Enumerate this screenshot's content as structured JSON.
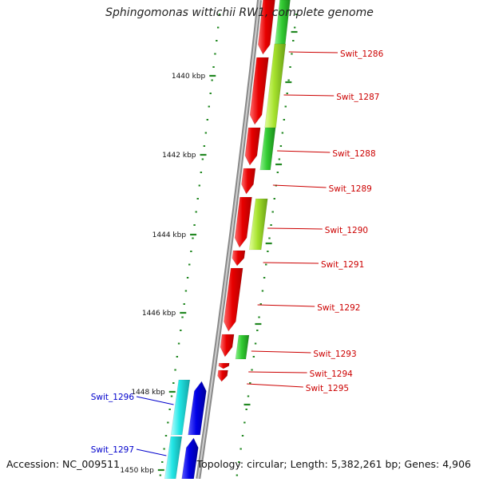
{
  "title": "Sphingomonas wittichii RW1, complete genome",
  "footer": {
    "accession": "Accession: NC_009511",
    "summary": "Topology: circular; Length: 5,382,261 bp; Genes: 4,906"
  },
  "colors": {
    "backbone": "#8a8a8a",
    "forward_gene": "#e80000",
    "reverse_gene": "#0000e6",
    "feature_green": "#33cc33",
    "feature_lime": "#a6e22e",
    "feature_cyan": "#22e5e5",
    "tick": "#228822",
    "label_forward": "#cc0000",
    "label_reverse": "#0000cc"
  },
  "map": {
    "scale_labels": [
      "1440 kbp",
      "1442 kbp",
      "1444 kbp",
      "1446 kbp",
      "1448 kbp",
      "1450 kbp"
    ],
    "forward_genes": [
      "Swit_1286",
      "Swit_1287",
      "Swit_1288",
      "Swit_1289",
      "Swit_1290",
      "Swit_1291",
      "Swit_1292",
      "Swit_1293",
      "Swit_1294",
      "Swit_1295"
    ],
    "reverse_genes": [
      "Swit_1296",
      "Swit_1297"
    ]
  }
}
